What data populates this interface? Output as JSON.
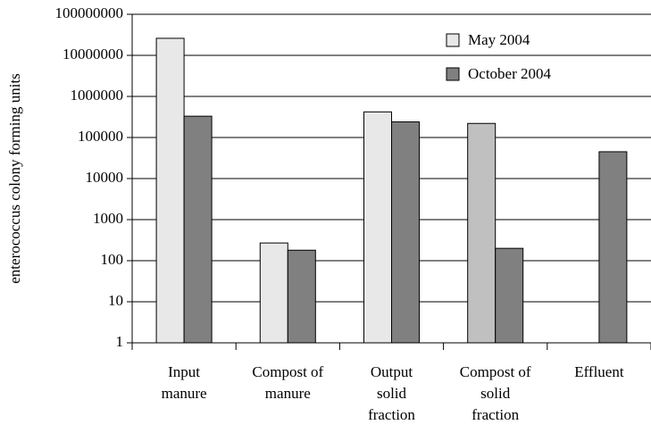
{
  "chart_data": {
    "type": "bar",
    "ylabel": "enterococcus colony forming units",
    "categories": [
      [
        "Input",
        "manure"
      ],
      [
        "Compost of",
        "manure"
      ],
      [
        "Output",
        "solid",
        "fraction"
      ],
      [
        "Compost of",
        "solid",
        "fraction"
      ],
      [
        "Effluent"
      ]
    ],
    "series": [
      {
        "name": "May 2004",
        "color": "#e8e8e8",
        "colors": [
          "#e8e8e8",
          "#e8e8e8",
          "#e8e8e8",
          "#c0c0c0",
          "#e8e8e8"
        ],
        "values": [
          26000000,
          270,
          420000,
          220000,
          null
        ]
      },
      {
        "name": "October 2004",
        "color": "#808080",
        "values": [
          330000,
          180,
          240000,
          200,
          45000
        ]
      }
    ],
    "ylim": [
      1,
      100000000
    ],
    "yticks": [
      1,
      10,
      100,
      1000,
      10000,
      100000,
      1000000,
      10000000,
      100000000
    ],
    "log_scale": true,
    "grid": true,
    "legend": "upper right"
  }
}
